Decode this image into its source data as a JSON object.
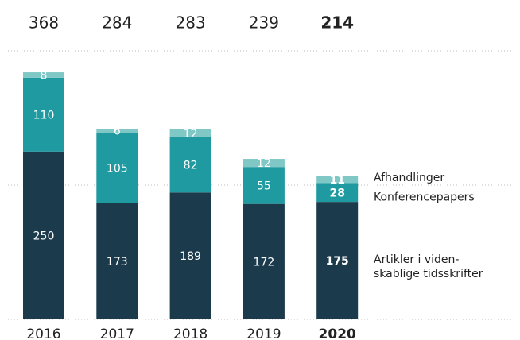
{
  "chart_data": {
    "type": "stacked_bar",
    "categories": [
      "2016",
      "2017",
      "2018",
      "2019",
      "2020"
    ],
    "totals": [
      368,
      284,
      283,
      239,
      214
    ],
    "highlight_category": "2020",
    "series": [
      {
        "name": "Artikler i viden-\nskablige tidsskrifter",
        "color": "#1b3a4b",
        "values": [
          250,
          173,
          189,
          172,
          175
        ]
      },
      {
        "name": "Konferencepapers",
        "color": "#1f9aa0",
        "values": [
          110,
          105,
          82,
          55,
          28
        ]
      },
      {
        "name": "Afhandlinger",
        "color": "#7fc8c6",
        "values": [
          8,
          6,
          12,
          12,
          11
        ]
      }
    ],
    "ylim": [
      0,
      400
    ],
    "yticks": [
      0,
      200,
      400
    ],
    "grid": true
  }
}
